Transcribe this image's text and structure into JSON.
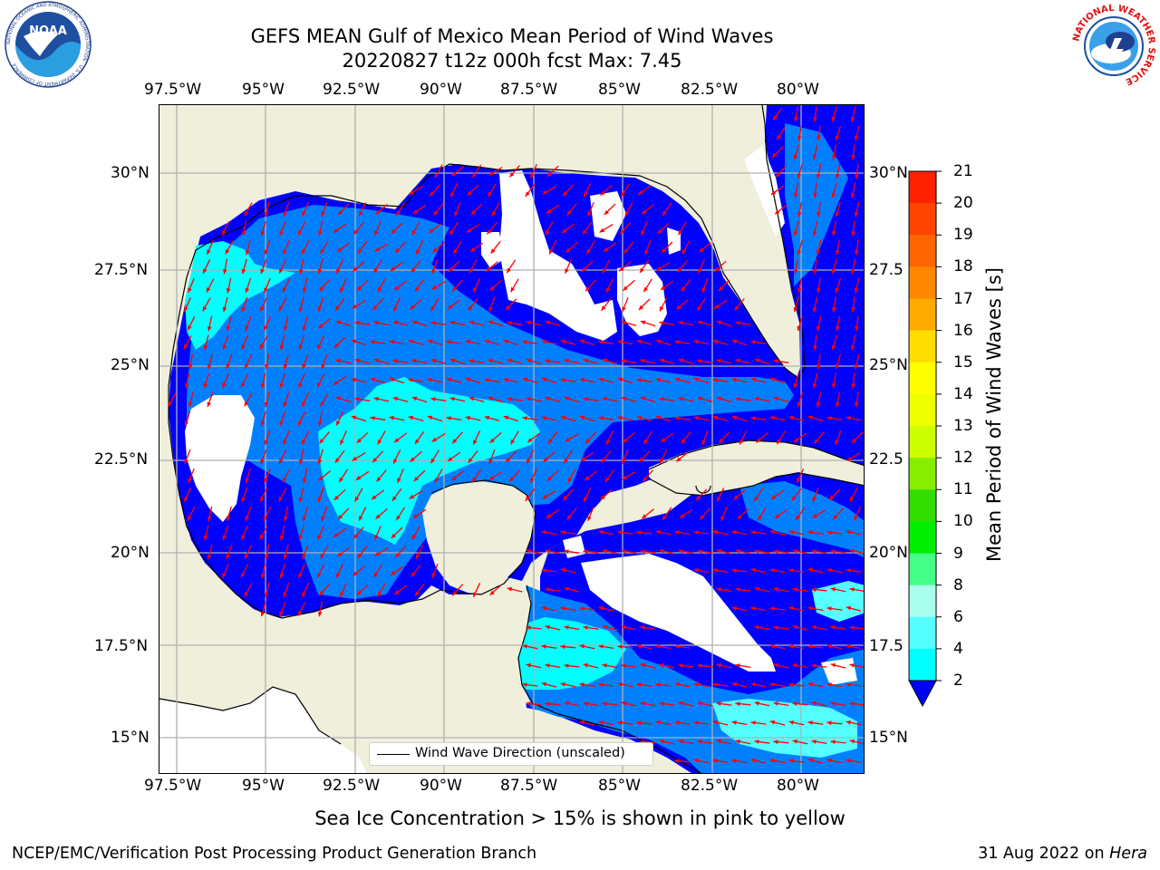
{
  "header": {
    "title_line1": "GEFS MEAN Gulf of Mexico Mean Period of Wind Waves",
    "title_line2": "20220827 t12z 000h fcst   Max: 7.45"
  },
  "logos": {
    "noaa_text": "NOAA",
    "noaa_ring": "NATIONAL OCEANIC AND ATMOSPHERIC ADMINISTRATION · U.S. DEPARTMENT OF COMMERCE",
    "nws_ring": "NATIONAL WEATHER SERVICE"
  },
  "axes": {
    "lon_labels": [
      "97.5°W",
      "95°W",
      "92.5°W",
      "90°W",
      "87.5°W",
      "85°W",
      "82.5°W",
      "80°W"
    ],
    "lat_labels_left": [
      "30°N",
      "27.5°N",
      "25°N",
      "22.5°N",
      "20°N",
      "17.5°N",
      "15°N"
    ],
    "lat_labels_right": [
      "30°N",
      "27.5",
      "25°N",
      "22.5",
      "20°N",
      "17.5",
      "15°N"
    ],
    "lon_range": [
      -98,
      -78.2
    ],
    "lat_range": [
      14,
      31.8
    ]
  },
  "legend": {
    "label": "Wind Wave Direction (unscaled)"
  },
  "colorbar": {
    "title": "Mean Period of Wind Waves [s]",
    "ticks": [
      "21",
      "20",
      "19",
      "18",
      "17",
      "16",
      "15",
      "14",
      "13",
      "12",
      "11",
      "10",
      "9",
      "8",
      "6",
      "4",
      "2"
    ],
    "colors": [
      "#ff0000",
      "#ff2200",
      "#ff4400",
      "#ff6600",
      "#ff8800",
      "#ffaa00",
      "#ffdd00",
      "#ffff00",
      "#eeff00",
      "#ccff00",
      "#88ee00",
      "#33dd00",
      "#00ee00",
      "#44ff88",
      "#aaffee",
      "#55ffff",
      "#00ffff",
      "#0088ff"
    ],
    "colors_note": "bands top to bottom; lowest band 0-2 shown by triangle",
    "extend_color": "#0000ff"
  },
  "colors": {
    "land": "#efefdc",
    "lowest_band": "#0000ff",
    "band_2_4": "#0080ff",
    "band_4_6": "#00ffff",
    "band_6_8": "#55ffff",
    "arrow": "#ff0000",
    "grid": "#b0b0b0"
  },
  "footer": {
    "ice_note": "Sea Ice Concentration > 15% is shown in pink to yellow",
    "producer": "NCEP/EMC/Verification Post Processing Product Generation Branch",
    "date": "31 Aug 2022 on",
    "machine": "Hera"
  }
}
